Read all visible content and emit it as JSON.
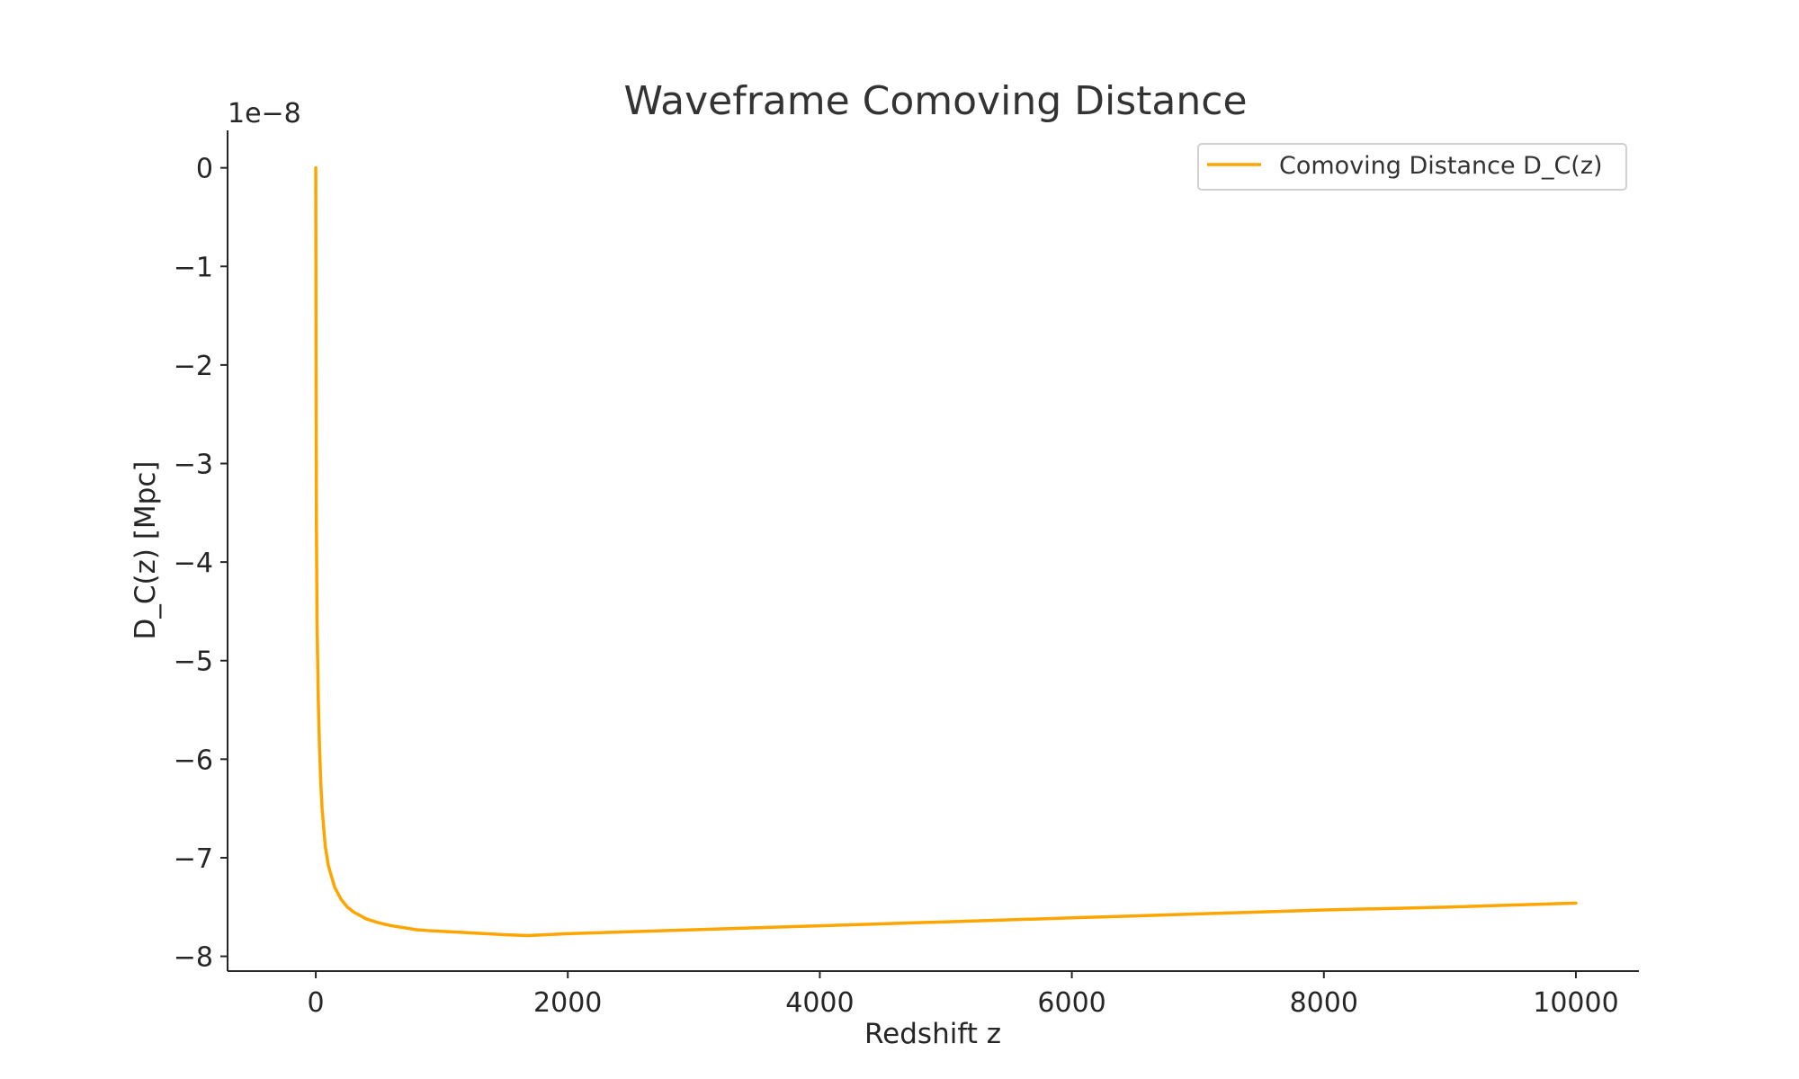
{
  "chart_data": {
    "type": "line",
    "title": "Waveframe Comoving Distance",
    "xlabel": "Redshift z",
    "ylabel": "D_C(z) [Mpc]",
    "y_offset_label": "1e−8",
    "xlim": [
      -700,
      10500
    ],
    "ylim": [
      -8.15,
      0.38
    ],
    "xticks": [
      0,
      2000,
      4000,
      6000,
      8000,
      10000
    ],
    "xtick_labels": [
      "0",
      "2000",
      "4000",
      "6000",
      "8000",
      "10000"
    ],
    "yticks": [
      0,
      -1,
      -2,
      -3,
      -4,
      -5,
      -6,
      -7,
      -8
    ],
    "ytick_labels": [
      "0",
      "−1",
      "−2",
      "−3",
      "−4",
      "−5",
      "−6",
      "−7",
      "−8"
    ],
    "grid": false,
    "legend_position": "top-right",
    "color": "#FFA500",
    "series": [
      {
        "name": "Comoving Distance D_C(z)",
        "x": [
          0,
          2,
          5,
          10,
          20,
          30,
          40,
          50,
          75,
          100,
          150,
          200,
          250,
          300,
          400,
          500,
          600,
          700,
          800,
          900,
          1200,
          1500,
          1680,
          2000,
          3000,
          4000,
          5000,
          6000,
          7000,
          8000,
          9000,
          10000
        ],
        "y": [
          0,
          -2.0,
          -3.6,
          -4.6,
          -5.4,
          -5.9,
          -6.25,
          -6.5,
          -6.88,
          -7.08,
          -7.3,
          -7.42,
          -7.5,
          -7.55,
          -7.62,
          -7.66,
          -7.69,
          -7.71,
          -7.73,
          -7.74,
          -7.76,
          -7.78,
          -7.79,
          -7.77,
          -7.73,
          -7.69,
          -7.65,
          -7.61,
          -7.57,
          -7.53,
          -7.5,
          -7.46
        ]
      }
    ]
  }
}
